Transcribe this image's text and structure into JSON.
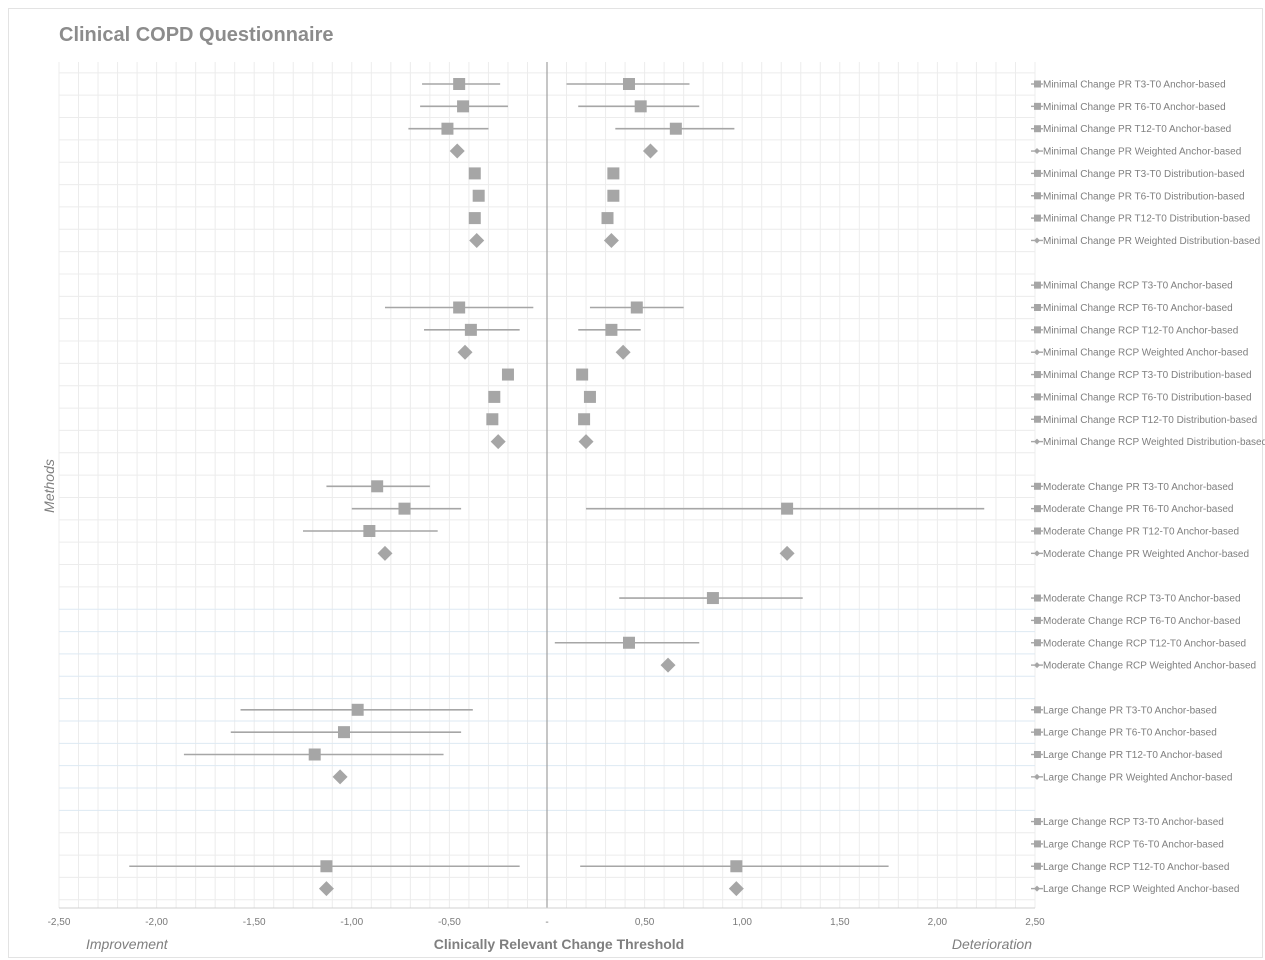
{
  "chart_data": {
    "type": "scatter",
    "title": "Clinical COPD Questionnaire",
    "xlabel": "Clinically Relevant Change Threshold",
    "ylabel": "Methods",
    "left_label": "Improvement",
    "right_label": "Deterioration",
    "xlim": [
      -2.5,
      2.5
    ],
    "x_ticks": [
      "-2,50",
      "-2,00",
      "-1,50",
      "-1,00",
      "-0,50",
      "-",
      "0,50",
      "1,00",
      "1,50",
      "2,00",
      "2,50"
    ],
    "x_tick_values": [
      -2.5,
      -2.0,
      -1.5,
      -1.0,
      -0.5,
      0,
      0.5,
      1.0,
      1.5,
      2.0,
      2.5
    ],
    "grid": true,
    "legend_position": "right",
    "colors": {
      "marker": "#a6a6a6",
      "line": "#a6a6a6",
      "axis": "#a0a0a0",
      "grid": "#ececec",
      "grid_blue": "#dde9f3"
    },
    "rows": [
      {
        "label": "Minimal Change PR T3-T0 Anchor-based",
        "marker": "square",
        "imp": -0.45,
        "imp_ci": [
          -0.64,
          -0.24
        ],
        "det": 0.42,
        "det_ci": [
          0.1,
          0.73
        ]
      },
      {
        "label": "Minimal Change PR T6-T0 Anchor-based",
        "marker": "square",
        "imp": -0.43,
        "imp_ci": [
          -0.65,
          -0.2
        ],
        "det": 0.48,
        "det_ci": [
          0.16,
          0.78
        ]
      },
      {
        "label": "Minimal Change PR T12-T0 Anchor-based",
        "marker": "square",
        "imp": -0.51,
        "imp_ci": [
          -0.71,
          -0.3
        ],
        "det": 0.66,
        "det_ci": [
          0.35,
          0.96
        ]
      },
      {
        "label": "Minimal Change PR Weighted Anchor-based",
        "marker": "diamond",
        "imp": -0.46,
        "det": 0.53
      },
      {
        "label": "Minimal Change PR T3-T0 Distribution-based",
        "marker": "square",
        "imp": -0.37,
        "det": 0.34
      },
      {
        "label": "Minimal Change PR T6-T0 Distribution-based",
        "marker": "square",
        "imp": -0.35,
        "det": 0.34
      },
      {
        "label": "Minimal Change PR T12-T0 Distribution-based",
        "marker": "square",
        "imp": -0.37,
        "det": 0.31
      },
      {
        "label": "Minimal Change PR Weighted Distribution-based",
        "marker": "diamond",
        "imp": -0.36,
        "det": 0.33
      },
      {
        "label": "",
        "marker": "none"
      },
      {
        "label": "Minimal Change RCP T3-T0 Anchor-based",
        "marker": "none"
      },
      {
        "label": "Minimal Change RCP T6-T0 Anchor-based",
        "marker": "square",
        "imp": -0.45,
        "imp_ci": [
          -0.83,
          -0.07
        ],
        "det": 0.46,
        "det_ci": [
          0.22,
          0.7
        ]
      },
      {
        "label": "Minimal Change RCP T12-T0 Anchor-based",
        "marker": "square",
        "imp": -0.39,
        "imp_ci": [
          -0.63,
          -0.14
        ],
        "det": 0.33,
        "det_ci": [
          0.16,
          0.48
        ]
      },
      {
        "label": "Minimal Change RCP Weighted Anchor-based",
        "marker": "diamond",
        "imp": -0.42,
        "det": 0.39
      },
      {
        "label": "Minimal Change RCP T3-T0 Distribution-based",
        "marker": "square",
        "imp": -0.2,
        "det": 0.18
      },
      {
        "label": "Minimal Change RCP T6-T0 Distribution-based",
        "marker": "square",
        "imp": -0.27,
        "det": 0.22
      },
      {
        "label": "Minimal Change RCP T12-T0 Distribution-based",
        "marker": "square",
        "imp": -0.28,
        "det": 0.19
      },
      {
        "label": "Minimal Change RCP Weighted Distribution-based",
        "marker": "diamond",
        "imp": -0.25,
        "det": 0.2
      },
      {
        "label": "",
        "marker": "none"
      },
      {
        "label": "Moderate Change PR T3-T0 Anchor-based",
        "marker": "square",
        "imp": -0.87,
        "imp_ci": [
          -1.13,
          -0.6
        ]
      },
      {
        "label": "Moderate Change PR T6-T0 Anchor-based",
        "marker": "square",
        "imp": -0.73,
        "imp_ci": [
          -1.0,
          -0.44
        ],
        "det": 1.23,
        "det_ci": [
          0.2,
          2.24
        ]
      },
      {
        "label": "Moderate Change PR T12-T0 Anchor-based",
        "marker": "square",
        "imp": -0.91,
        "imp_ci": [
          -1.25,
          -0.56
        ]
      },
      {
        "label": "Moderate Change PR Weighted Anchor-based",
        "marker": "diamond",
        "imp": -0.83,
        "det": 1.23
      },
      {
        "label": "",
        "marker": "none"
      },
      {
        "label": "Moderate Change RCP T3-T0 Anchor-based",
        "marker": "square",
        "det": 0.85,
        "det_ci": [
          0.37,
          1.31
        ]
      },
      {
        "label": "Moderate Change RCP T6-T0 Anchor-based",
        "marker": "none"
      },
      {
        "label": "Moderate Change RCP T12-T0 Anchor-based",
        "marker": "square",
        "det": 0.42,
        "det_ci": [
          0.04,
          0.78
        ]
      },
      {
        "label": "Moderate Change RCP Weighted Anchor-based",
        "marker": "diamond",
        "det": 0.62
      },
      {
        "label": "",
        "marker": "none"
      },
      {
        "label": "Large Change PR T3-T0 Anchor-based",
        "marker": "square",
        "imp": -0.97,
        "imp_ci": [
          -1.57,
          -0.38
        ]
      },
      {
        "label": "Large Change PR T6-T0 Anchor-based",
        "marker": "square",
        "imp": -1.04,
        "imp_ci": [
          -1.62,
          -0.44
        ]
      },
      {
        "label": "Large Change PR T12-T0 Anchor-based",
        "marker": "square",
        "imp": -1.19,
        "imp_ci": [
          -1.86,
          -0.53
        ]
      },
      {
        "label": "Large Change PR Weighted Anchor-based",
        "marker": "diamond",
        "imp": -1.06
      },
      {
        "label": "",
        "marker": "none"
      },
      {
        "label": "Large Change RCP T3-T0 Anchor-based",
        "marker": "none"
      },
      {
        "label": "Large Change RCP T6-T0 Anchor-based",
        "marker": "none"
      },
      {
        "label": "Large Change RCP T12-T0 Anchor-based",
        "marker": "square",
        "imp": -1.13,
        "imp_ci": [
          -2.14,
          -0.14
        ],
        "det": 0.97,
        "det_ci": [
          0.17,
          1.75
        ]
      },
      {
        "label": "Large Change RCP Weighted Anchor-based",
        "marker": "diamond",
        "imp": -1.13,
        "det": 0.97
      }
    ]
  }
}
